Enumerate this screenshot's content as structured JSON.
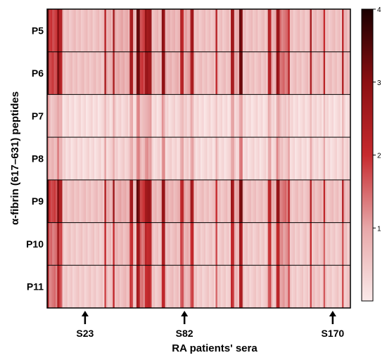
{
  "chart_data": {
    "type": "heatmap",
    "title": "",
    "xlabel": "RA patients' sera",
    "ylabel": "α-fibrin (617–631) peptides",
    "rows": [
      "P5",
      "P6",
      "P7",
      "P8",
      "P9",
      "P10",
      "P11"
    ],
    "n_columns": 180,
    "colorbar": {
      "min": 0,
      "max": 4,
      "ticks": [
        1,
        2,
        3,
        4
      ],
      "colors": [
        "#fbeaea",
        "#e7a7a8",
        "#c62a2e",
        "#8b0f12",
        "#1a0000"
      ]
    },
    "annotations": [
      {
        "label": "S23",
        "column": 23
      },
      {
        "label": "S82",
        "column": 82
      },
      {
        "label": "S170",
        "column": 170
      }
    ],
    "column_profile": [
      {
        "from": 1,
        "to": 1,
        "value": 3.5
      },
      {
        "from": 2,
        "to": 6,
        "value": 1.8
      },
      {
        "from": 7,
        "to": 7,
        "value": 3.2
      },
      {
        "from": 8,
        "to": 9,
        "value": 2.3
      },
      {
        "from": 10,
        "to": 34,
        "value": 0.6
      },
      {
        "from": 35,
        "to": 35,
        "value": 2.4
      },
      {
        "from": 36,
        "to": 39,
        "value": 0.8
      },
      {
        "from": 40,
        "to": 40,
        "value": 2.6
      },
      {
        "from": 41,
        "to": 49,
        "value": 0.9
      },
      {
        "from": 50,
        "to": 51,
        "value": 2.5
      },
      {
        "from": 52,
        "to": 53,
        "value": 0.7
      },
      {
        "from": 54,
        "to": 55,
        "value": 3.3
      },
      {
        "from": 56,
        "to": 58,
        "value": 1.8
      },
      {
        "from": 59,
        "to": 62,
        "value": 2.7
      },
      {
        "from": 63,
        "to": 68,
        "value": 0.7
      },
      {
        "from": 69,
        "to": 70,
        "value": 2.9
      },
      {
        "from": 71,
        "to": 79,
        "value": 0.8
      },
      {
        "from": 80,
        "to": 81,
        "value": 2.2
      },
      {
        "from": 82,
        "to": 85,
        "value": 1.0
      },
      {
        "from": 86,
        "to": 87,
        "value": 2.5
      },
      {
        "from": 88,
        "to": 100,
        "value": 0.6
      },
      {
        "from": 101,
        "to": 101,
        "value": 2.1
      },
      {
        "from": 102,
        "to": 109,
        "value": 0.6
      },
      {
        "from": 110,
        "to": 111,
        "value": 2.6
      },
      {
        "from": 112,
        "to": 114,
        "value": 0.9
      },
      {
        "from": 115,
        "to": 116,
        "value": 3.2
      },
      {
        "from": 117,
        "to": 131,
        "value": 0.6
      },
      {
        "from": 132,
        "to": 133,
        "value": 2.3
      },
      {
        "from": 134,
        "to": 136,
        "value": 0.8
      },
      {
        "from": 137,
        "to": 138,
        "value": 2.8
      },
      {
        "from": 139,
        "to": 143,
        "value": 1.4
      },
      {
        "from": 144,
        "to": 144,
        "value": 2.2
      },
      {
        "from": 145,
        "to": 156,
        "value": 0.6
      },
      {
        "from": 157,
        "to": 157,
        "value": 2.4
      },
      {
        "from": 158,
        "to": 164,
        "value": 0.7
      },
      {
        "from": 165,
        "to": 165,
        "value": 2.1
      },
      {
        "from": 166,
        "to": 175,
        "value": 0.6
      },
      {
        "from": 176,
        "to": 176,
        "value": 2.2
      },
      {
        "from": 177,
        "to": 180,
        "value": 0.7
      }
    ],
    "row_factor": [
      1.0,
      1.0,
      0.35,
      0.4,
      1.0,
      0.8,
      0.75
    ]
  }
}
